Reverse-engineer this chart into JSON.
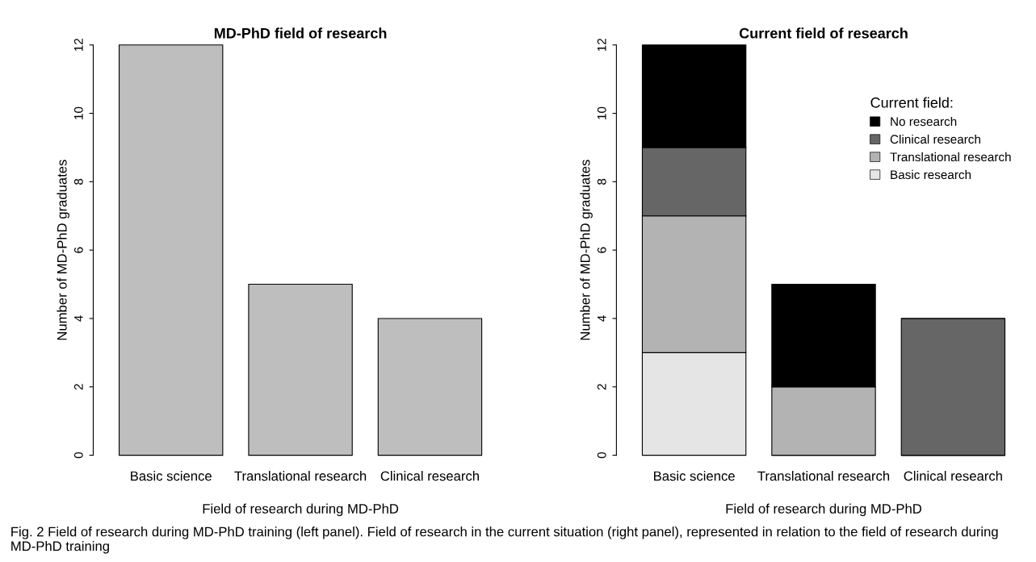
{
  "chart_data": [
    {
      "type": "bar",
      "title": "MD-PhD field of research",
      "xlabel": "Field of research during MD-PhD",
      "ylabel": "Number of MD-PhD graduates",
      "categories": [
        "Basic science",
        "Translational research",
        "Clinical research"
      ],
      "series": [
        {
          "color": "#bebebe",
          "values": [
            12,
            5,
            4
          ]
        }
      ],
      "ylim": [
        0,
        12
      ],
      "yticks": [
        0,
        2,
        4,
        6,
        8,
        10,
        12
      ],
      "grid": false,
      "legend": false,
      "annotations": [
        "Fig. 2 Field of research during MD-PhD training (left panel). Field of research in the current situation (right panel), represented in relation to the field of research during MD-PhD training"
      ]
    },
    {
      "type": "bar",
      "stacked": true,
      "title": "Current field of research",
      "xlabel": "Field of research during MD-PhD",
      "ylabel": "Number of MD-PhD graduates",
      "categories": [
        "Basic science",
        "Translational research",
        "Clinical research"
      ],
      "legend_title": "Current field:",
      "legend": "top right",
      "series": [
        {
          "name": "Basic research",
          "color": "#e5e5e5",
          "values": [
            3,
            0,
            0
          ]
        },
        {
          "name": "Translational research",
          "color": "#b3b3b3",
          "values": [
            4,
            2,
            0
          ]
        },
        {
          "name": "Clinical research",
          "color": "#666666",
          "values": [
            2,
            0,
            4
          ]
        },
        {
          "name": "No research",
          "color": "#000000",
          "values": [
            3,
            3,
            0
          ]
        }
      ],
      "ylim": [
        0,
        12
      ],
      "yticks": [
        0,
        2,
        4,
        6,
        8,
        10,
        12
      ],
      "grid": false
    }
  ]
}
